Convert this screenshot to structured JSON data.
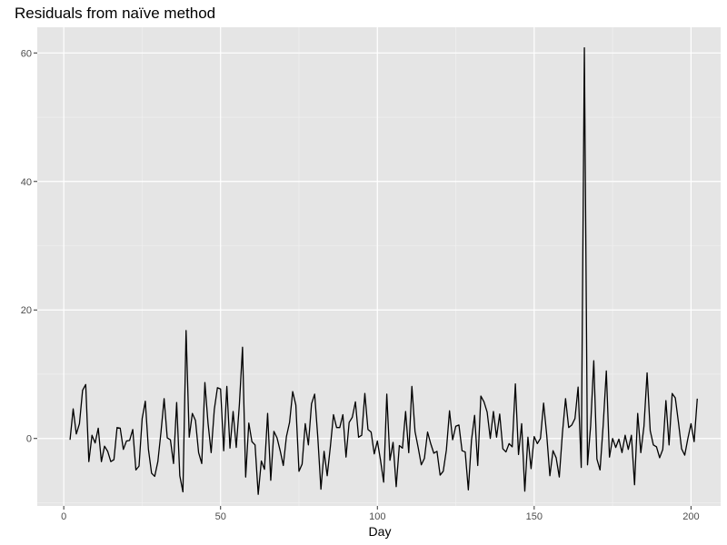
{
  "chart_data": {
    "type": "line",
    "title": "Residuals from naïve method",
    "xlabel": "Day",
    "ylabel": "",
    "xlim": [
      -8.45,
      209.45
    ],
    "ylim": [
      -10.5,
      64.0
    ],
    "x_ticks": [
      0,
      50,
      100,
      150,
      200
    ],
    "x_tick_labels": [
      "0",
      "50",
      "100",
      "150",
      "200"
    ],
    "y_ticks": [
      0,
      20,
      40,
      60
    ],
    "y_tick_labels": [
      "0",
      "20",
      "40",
      "60"
    ],
    "grid": true,
    "legend": "none",
    "colors": {
      "panel_background": "#e5e5e5",
      "grid_major": "#ffffff",
      "line": "#000000"
    },
    "series": [
      {
        "x_start": 2,
        "x_step": 1,
        "values": [
          -0.2,
          4.6,
          0.7,
          2.3,
          7.5,
          8.4,
          -3.6,
          0.5,
          -0.7,
          1.6,
          -3.6,
          -1.2,
          -2.0,
          -3.6,
          -3.3,
          1.7,
          1.6,
          -1.7,
          -0.4,
          -0.3,
          1.4,
          -4.9,
          -4.3,
          3.1,
          5.8,
          -1.7,
          -5.4,
          -5.9,
          -3.6,
          1.0,
          6.2,
          0.1,
          -0.2,
          -3.9,
          5.6,
          -5.8,
          -8.3,
          16.8,
          0.2,
          3.9,
          2.8,
          -2.2,
          -3.9,
          8.7,
          2.4,
          -2.2,
          4.5,
          7.9,
          7.7,
          -1.9,
          8.1,
          -1.5,
          4.2,
          -1.4,
          5.3,
          14.2,
          -6.0,
          2.4,
          -0.5,
          -1.0,
          -8.7,
          -3.5,
          -4.8,
          3.9,
          -6.5,
          1.1,
          0.1,
          -1.9,
          -4.2,
          0.3,
          2.5,
          7.3,
          5.2,
          -5.1,
          -4.0,
          2.3,
          -1.0,
          5.4,
          6.9,
          0.2,
          -7.9,
          -2.0,
          -5.8,
          -1.3,
          3.7,
          1.7,
          1.7,
          3.7,
          -2.9,
          2.5,
          3.3,
          5.7,
          0.2,
          0.5,
          7.0,
          1.4,
          1.0,
          -2.4,
          -0.4,
          -3.4,
          -6.8,
          6.9,
          -3.4,
          -0.6,
          -7.5,
          -1.1,
          -1.5,
          4.2,
          -2.2,
          8.1,
          1.1,
          -1.4,
          -4.1,
          -3.1,
          1.0,
          -0.8,
          -2.3,
          -2.0,
          -5.7,
          -5.1,
          -1.8,
          4.3,
          -0.2,
          1.9,
          2.1,
          -1.9,
          -2.1,
          -8.0,
          -0.3,
          3.6,
          -4.2,
          6.6,
          5.7,
          4.1,
          0.0,
          4.2,
          0.2,
          3.8,
          -1.6,
          -2.1,
          -0.8,
          -1.3,
          8.5,
          -2.5,
          2.3,
          -8.2,
          0.2,
          -4.7,
          0.3,
          -0.8,
          0.0,
          5.5,
          0.5,
          -5.8,
          -1.9,
          -3.0,
          -6.0,
          0.8,
          6.2,
          1.7,
          2.1,
          3.1,
          8.0,
          -4.5,
          60.8,
          -4.1,
          2.0,
          12.1,
          -3.2,
          -4.9,
          2.1,
          10.5,
          -2.9,
          0.0,
          -1.4,
          -0.1,
          -2.2,
          0.5,
          -1.7,
          0.5,
          -7.2,
          3.9,
          -2.2,
          1.9,
          10.2,
          1.2,
          -1.0,
          -1.3,
          -3.0,
          -1.7,
          5.9,
          -1.0,
          7.0,
          6.3,
          2.5,
          -1.6,
          -2.6,
          0.0,
          2.3,
          -0.5,
          6.2
        ]
      }
    ]
  }
}
